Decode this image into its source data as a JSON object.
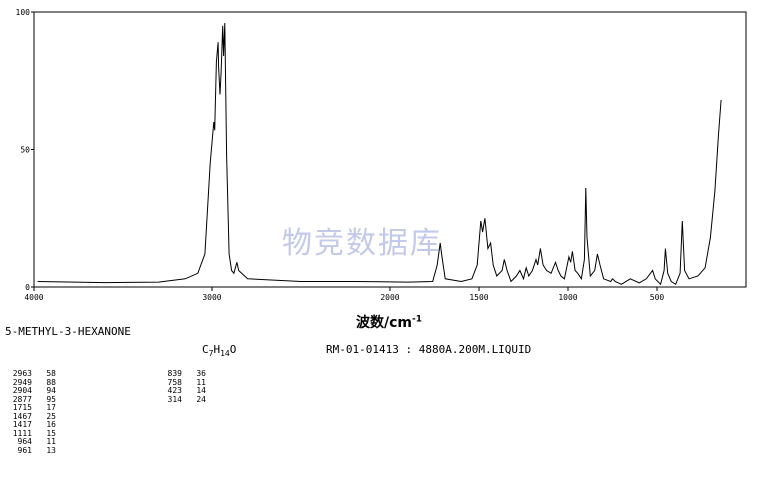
{
  "chart_data": {
    "type": "line",
    "xlabel": "波数/cm",
    "xlabel_sup": "-1",
    "xlim": [
      4000,
      0
    ],
    "ylim": [
      0,
      100
    ],
    "x_ticks": [
      {
        "v": 4000,
        "t": "4000"
      },
      {
        "v": 3000,
        "t": "3000"
      },
      {
        "v": 2000,
        "t": "2000"
      },
      {
        "v": 1500,
        "t": "1500"
      },
      {
        "v": 1000,
        "t": "1000"
      },
      {
        "v": 500,
        "t": "500"
      }
    ],
    "y_ticks": [
      {
        "v": 0,
        "t": "0"
      },
      {
        "v": 50,
        "t": "50"
      },
      {
        "v": 100,
        "t": "100"
      }
    ],
    "series": [
      {
        "points": [
          [
            3980,
            2
          ],
          [
            3600,
            1.6
          ],
          [
            3300,
            1.8
          ],
          [
            3150,
            3
          ],
          [
            3080,
            5
          ],
          [
            3040,
            12
          ],
          [
            3010,
            45
          ],
          [
            2990,
            60
          ],
          [
            2985,
            57
          ],
          [
            2975,
            82
          ],
          [
            2966,
            89
          ],
          [
            2963,
            80
          ],
          [
            2955,
            70
          ],
          [
            2949,
            78
          ],
          [
            2940,
            95
          ],
          [
            2935,
            84
          ],
          [
            2928,
            96
          ],
          [
            2918,
            48
          ],
          [
            2904,
            12
          ],
          [
            2890,
            6
          ],
          [
            2877,
            5
          ],
          [
            2860,
            9
          ],
          [
            2850,
            6
          ],
          [
            2800,
            3
          ],
          [
            2500,
            2
          ],
          [
            2200,
            2
          ],
          [
            1900,
            1.8
          ],
          [
            1760,
            2
          ],
          [
            1735,
            8
          ],
          [
            1718,
            16
          ],
          [
            1710,
            12
          ],
          [
            1690,
            3
          ],
          [
            1600,
            2
          ],
          [
            1540,
            3
          ],
          [
            1510,
            8
          ],
          [
            1490,
            24
          ],
          [
            1480,
            20
          ],
          [
            1467,
            25
          ],
          [
            1450,
            14
          ],
          [
            1435,
            16
          ],
          [
            1420,
            8
          ],
          [
            1400,
            4
          ],
          [
            1370,
            6
          ],
          [
            1358,
            10
          ],
          [
            1342,
            6
          ],
          [
            1320,
            2
          ],
          [
            1290,
            4
          ],
          [
            1270,
            6
          ],
          [
            1250,
            3
          ],
          [
            1235,
            7
          ],
          [
            1220,
            4
          ],
          [
            1200,
            6
          ],
          [
            1180,
            10
          ],
          [
            1170,
            8
          ],
          [
            1155,
            14
          ],
          [
            1140,
            8
          ],
          [
            1120,
            6
          ],
          [
            1095,
            5
          ],
          [
            1070,
            9
          ],
          [
            1055,
            6
          ],
          [
            1040,
            4
          ],
          [
            1020,
            3
          ],
          [
            995,
            11
          ],
          [
            985,
            9
          ],
          [
            975,
            13
          ],
          [
            960,
            6
          ],
          [
            945,
            5
          ],
          [
            925,
            3
          ],
          [
            908,
            10
          ],
          [
            900,
            36
          ],
          [
            893,
            18
          ],
          [
            875,
            4
          ],
          [
            850,
            6
          ],
          [
            835,
            12
          ],
          [
            820,
            8
          ],
          [
            800,
            3
          ],
          [
            760,
            2
          ],
          [
            750,
            3
          ],
          [
            735,
            2
          ],
          [
            700,
            1
          ],
          [
            650,
            3
          ],
          [
            600,
            1.5
          ],
          [
            560,
            3
          ],
          [
            525,
            6
          ],
          [
            510,
            3
          ],
          [
            480,
            1
          ],
          [
            460,
            6
          ],
          [
            453,
            14
          ],
          [
            440,
            5
          ],
          [
            420,
            2
          ],
          [
            395,
            1
          ],
          [
            370,
            5
          ],
          [
            358,
            24
          ],
          [
            345,
            6
          ],
          [
            320,
            3
          ],
          [
            270,
            4
          ],
          [
            230,
            7
          ],
          [
            200,
            18
          ],
          [
            175,
            35
          ],
          [
            155,
            55
          ],
          [
            140,
            68
          ]
        ]
      }
    ]
  },
  "compound": {
    "name": "5-METHYL-3-HEXANONE",
    "formula_parts": {
      "c": "C",
      "c_sub": "7",
      "h": "H",
      "h_sub": "14",
      "o": "O"
    },
    "reference": "RM-01-01413 : 4880A.200M.LIQUID"
  },
  "watermark": "物竞数据库",
  "peak_table": {
    "col1": [
      {
        "wn": "2963",
        "t": "58"
      },
      {
        "wn": "2949",
        "t": "88"
      },
      {
        "wn": "2904",
        "t": "94"
      },
      {
        "wn": "2877",
        "t": "95"
      },
      {
        "wn": "1715",
        "t": "17"
      },
      {
        "wn": "1467",
        "t": "25"
      },
      {
        "wn": "1417",
        "t": "16"
      },
      {
        "wn": "1111",
        "t": "15"
      },
      {
        "wn": "964",
        "t": "11"
      },
      {
        "wn": "961",
        "t": "13"
      }
    ],
    "col2": [
      {
        "wn": "839",
        "t": "36"
      },
      {
        "wn": "758",
        "t": "11"
      },
      {
        "wn": "423",
        "t": "14"
      },
      {
        "wn": "314",
        "t": "24"
      }
    ]
  }
}
